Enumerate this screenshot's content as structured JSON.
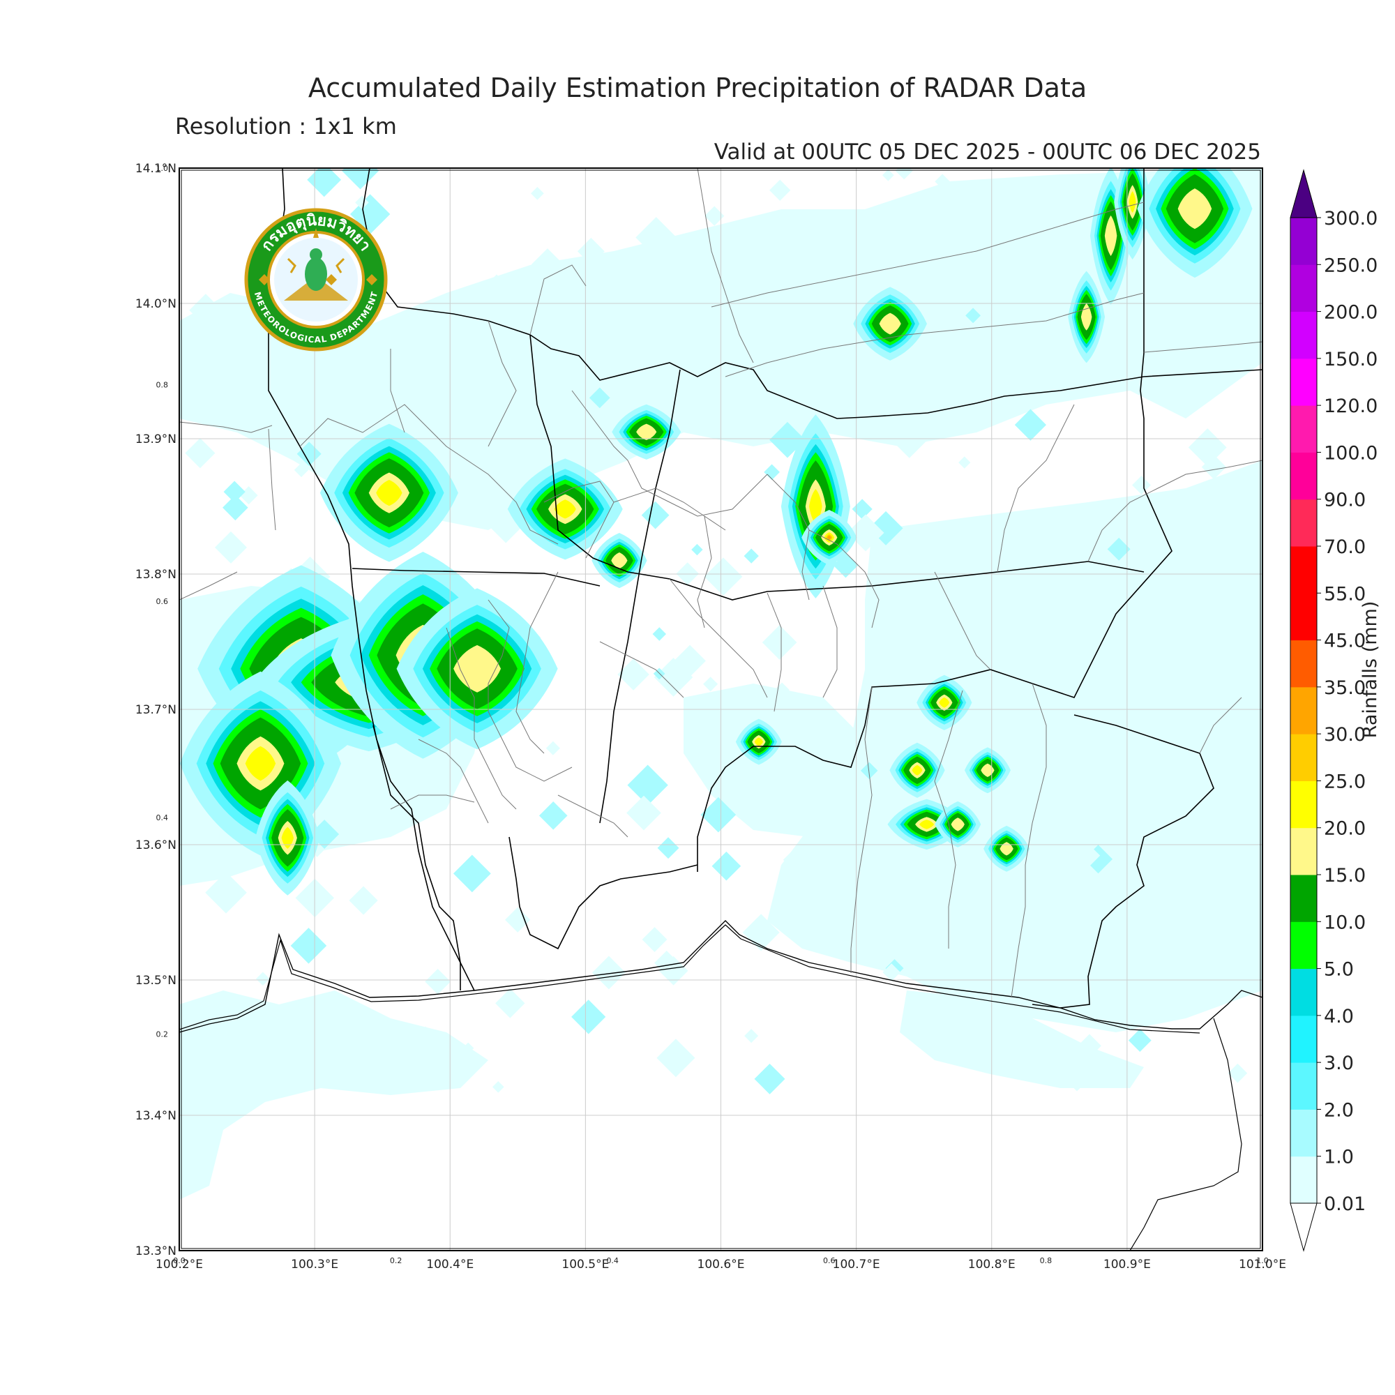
{
  "title": "Accumulated Daily Estimation Precipitation of RADAR Data",
  "subtitle": "Resolution : 1x1 km",
  "valid_time": "Valid at 00UTC 05 DEC 2025 - 00UTC 06 DEC 2025",
  "logo": {
    "name_thai": "กรมอุตุนิยมวิทยา",
    "name_english": "METEOROLOGICAL DEPARTMENT",
    "colors": {
      "ring": "#1a9a1a",
      "gold": "#d4a017"
    }
  },
  "map": {
    "lon_range": [
      100.2,
      101.0
    ],
    "lat_range": [
      13.3,
      14.1
    ],
    "lon_ticks": [
      "100.2°E",
      "100.3°E",
      "100.4°E",
      "100.5°E",
      "100.6°E",
      "100.7°E",
      "100.8°E",
      "100.9°E",
      "101.0°E"
    ],
    "lat_ticks": [
      "13.3°N",
      "13.4°N",
      "13.5°N",
      "13.6°N",
      "13.7°N",
      "13.8°N",
      "13.9°N",
      "14.0°N",
      "14.1°N"
    ],
    "inner_x_ticks": [
      "0.0",
      "0.2",
      "0.4",
      "0.6",
      "0.8",
      "1.0"
    ],
    "inner_y_ticks": [
      "0.2",
      "0.4",
      "0.6",
      "0.8",
      "1.0"
    ],
    "grid": true
  },
  "colorbar": {
    "title": "Rainfalls (mm)",
    "levels": [
      "0.01",
      "1.0",
      "2.0",
      "3.0",
      "4.0",
      "5.0",
      "10.0",
      "15.0",
      "20.0",
      "25.0",
      "30.0",
      "35.0",
      "45.0",
      "55.0",
      "70.0",
      "90.0",
      "100.0",
      "120.0",
      "150.0",
      "200.0",
      "250.0",
      "300.0"
    ],
    "colors": [
      "#e0ffff",
      "#a8fbff",
      "#5cf7ff",
      "#20f3ff",
      "#00dde2",
      "#00ff00",
      "#00a500",
      "#fff88a",
      "#ffff00",
      "#ffcd00",
      "#ffa500",
      "#ff5c00",
      "#ff0000",
      "#ff0000",
      "#ff2a58",
      "#ff0099",
      "#ff1aae",
      "#ff00ff",
      "#d200ff",
      "#b000e0",
      "#9400d3",
      "#6a008b"
    ],
    "over_color": "#4b0082"
  },
  "rain_cells": [
    {
      "lon": 100.29,
      "lat": 13.73,
      "rx": 0.045,
      "ry": 0.045,
      "max": 15
    },
    {
      "lon": 100.34,
      "lat": 13.72,
      "rx": 0.05,
      "ry": 0.03,
      "max": 15
    },
    {
      "lon": 100.38,
      "lat": 13.74,
      "rx": 0.04,
      "ry": 0.045,
      "max": 15
    },
    {
      "lon": 100.42,
      "lat": 13.73,
      "rx": 0.035,
      "ry": 0.035,
      "max": 10
    },
    {
      "lon": 100.26,
      "lat": 13.66,
      "rx": 0.035,
      "ry": 0.04,
      "max": 15
    },
    {
      "lon": 100.28,
      "lat": 13.605,
      "rx": 0.014,
      "ry": 0.025,
      "max": 15
    },
    {
      "lon": 100.355,
      "lat": 13.86,
      "rx": 0.03,
      "ry": 0.03,
      "max": 15
    },
    {
      "lon": 100.485,
      "lat": 13.848,
      "rx": 0.025,
      "ry": 0.022,
      "max": 15
    },
    {
      "lon": 100.525,
      "lat": 13.81,
      "rx": 0.012,
      "ry": 0.012,
      "max": 10
    },
    {
      "lon": 100.545,
      "lat": 13.905,
      "rx": 0.015,
      "ry": 0.012,
      "max": 10
    },
    {
      "lon": 100.67,
      "lat": 13.85,
      "rx": 0.015,
      "ry": 0.04,
      "max": 15
    },
    {
      "lon": 100.68,
      "lat": 13.827,
      "rx": 0.012,
      "ry": 0.012,
      "max": 25
    },
    {
      "lon": 100.725,
      "lat": 13.985,
      "rx": 0.016,
      "ry": 0.016,
      "max": 10
    },
    {
      "lon": 100.765,
      "lat": 13.705,
      "rx": 0.012,
      "ry": 0.012,
      "max": 15
    },
    {
      "lon": 100.745,
      "lat": 13.655,
      "rx": 0.012,
      "ry": 0.012,
      "max": 15
    },
    {
      "lon": 100.752,
      "lat": 13.615,
      "rx": 0.017,
      "ry": 0.011,
      "max": 15
    },
    {
      "lon": 100.775,
      "lat": 13.615,
      "rx": 0.01,
      "ry": 0.01,
      "max": 10
    },
    {
      "lon": 100.797,
      "lat": 13.655,
      "rx": 0.01,
      "ry": 0.01,
      "max": 10
    },
    {
      "lon": 100.811,
      "lat": 13.597,
      "rx": 0.01,
      "ry": 0.01,
      "max": 10
    },
    {
      "lon": 100.628,
      "lat": 13.676,
      "rx": 0.01,
      "ry": 0.01,
      "max": 15
    },
    {
      "lon": 100.87,
      "lat": 13.99,
      "rx": 0.008,
      "ry": 0.02,
      "max": 10
    },
    {
      "lon": 100.888,
      "lat": 14.05,
      "rx": 0.009,
      "ry": 0.03,
      "max": 10
    },
    {
      "lon": 100.904,
      "lat": 14.075,
      "rx": 0.008,
      "ry": 0.025,
      "max": 15
    },
    {
      "lon": 100.95,
      "lat": 14.07,
      "rx": 0.025,
      "ry": 0.03,
      "max": 10
    }
  ]
}
